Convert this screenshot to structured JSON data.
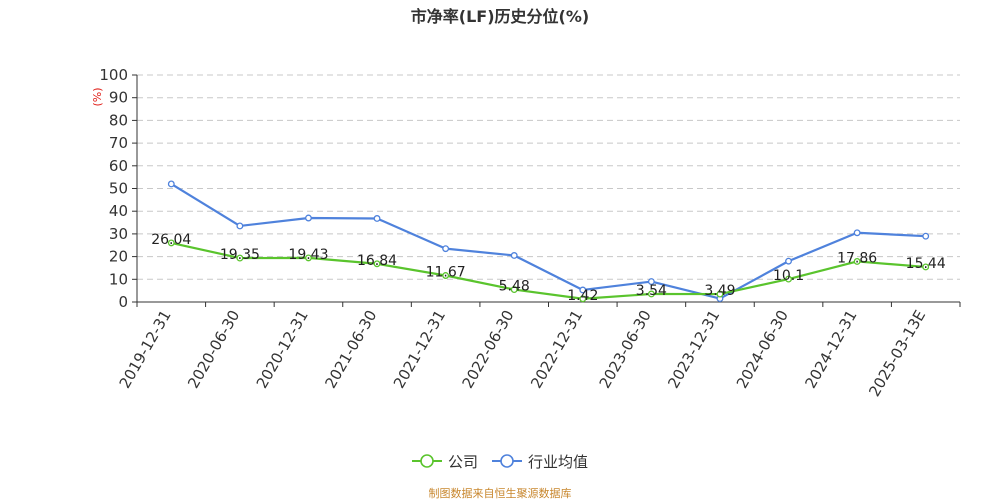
{
  "chart_data": {
    "type": "line",
    "title": "市净率(LF)历史分位(%)",
    "ylabel": "(%)",
    "ylim": [
      0,
      100
    ],
    "yticks": [
      0,
      10,
      20,
      30,
      40,
      50,
      60,
      70,
      80,
      90,
      100
    ],
    "grid": true,
    "legend_position": "bottom",
    "categories": [
      "2019-12-31",
      "2020-06-30",
      "2020-12-31",
      "2021-06-30",
      "2021-12-31",
      "2022-06-30",
      "2022-12-31",
      "2023-06-30",
      "2023-12-31",
      "2024-06-30",
      "2024-12-31",
      "2025-03-13E"
    ],
    "series": [
      {
        "name": "公司",
        "color": "#5ac42d",
        "values": [
          26.04,
          19.35,
          19.43,
          16.84,
          11.67,
          5.48,
          1.42,
          3.54,
          3.49,
          10.1,
          17.86,
          15.44
        ],
        "labels": [
          "26.04",
          "19.35",
          "19.43",
          "16.84",
          "11.67",
          "5.48",
          "1.42",
          "3.54",
          "3.49",
          "10.1",
          "17.86",
          "15.44"
        ]
      },
      {
        "name": "行业均值",
        "color": "#4f82dc",
        "values": [
          52,
          33.5,
          37,
          36.8,
          23.5,
          20.5,
          5.3,
          9,
          1.5,
          18,
          30.5,
          29
        ]
      }
    ]
  },
  "source_text": "制图数据来自恒生聚源数据库"
}
